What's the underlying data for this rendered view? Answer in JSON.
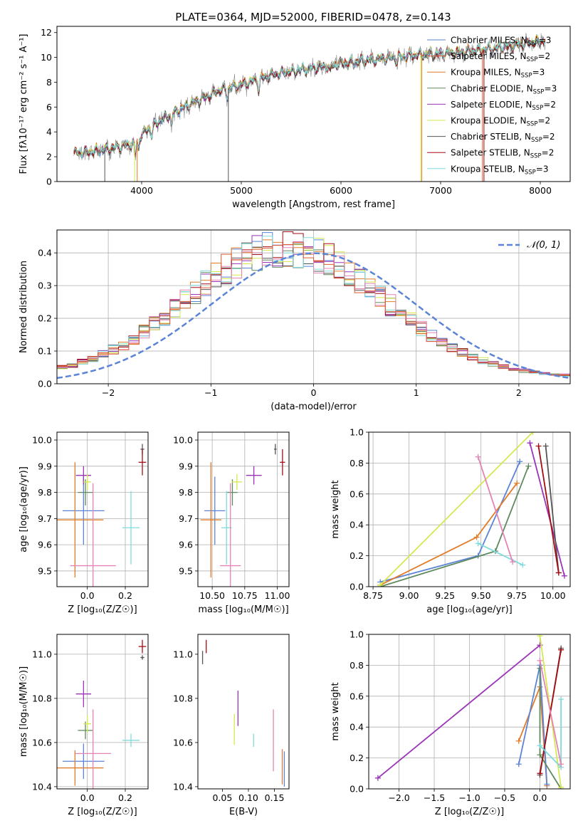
{
  "figure": {
    "title": "PLATE=0364, MJD=52000, FIBERID=0478, z=0.143"
  },
  "colors": {
    "c1": "#5b84d6",
    "c2": "#e07c2a",
    "c3": "#5e8a5e",
    "c4": "#9b35b8",
    "c5": "#d6e84f",
    "c6": "#555555",
    "c7": "#a30e14",
    "c8": "#7fdbdb",
    "c9": "#e483b4",
    "c10": "#e05a33"
  },
  "chart_data": [
    {
      "id": "spectrum",
      "type": "line",
      "xlabel": "wavelength [Angstrom, rest frame]",
      "ylabel": "Flux [fλ10⁻¹⁷ erg cm⁻² s⁻¹ A⁻¹]",
      "xlim": [
        3150,
        8300
      ],
      "ylim": [
        0,
        12.5
      ],
      "xticks": [
        4000,
        5000,
        6000,
        7000,
        8000
      ],
      "yticks": [
        0,
        2,
        4,
        6,
        8,
        10,
        12
      ],
      "grid": false,
      "legend": "top-right",
      "series": [
        {
          "name": "Chabrier MILES, N_SSP=3",
          "color": "c1"
        },
        {
          "name": "Salpeter MILES, N_SSP=2",
          "color": "c10"
        },
        {
          "name": "Kroupa MILES, N_SSP=3",
          "color": "c2"
        },
        {
          "name": "Chabrier ELODIE, N_SSP=3",
          "color": "c3"
        },
        {
          "name": "Salpeter ELODIE, N_SSP=2",
          "color": "c4"
        },
        {
          "name": "Kroupa ELODIE, N_SSP=2",
          "color": "c5"
        },
        {
          "name": "Chabrier STELIB, N_SSP=2",
          "color": "c6"
        },
        {
          "name": "Salpeter STELIB, N_SSP=2",
          "color": "c7"
        },
        {
          "name": "Kroupa STELIB, N_SSP=3",
          "color": "c8"
        }
      ],
      "continuum": {
        "x": [
          3300,
          3500,
          3700,
          3900,
          4000,
          4200,
          4500,
          4800,
          5000,
          5300,
          5600,
          6000,
          6400,
          6800,
          7200,
          7600,
          8000,
          8100
        ],
        "y": [
          2.3,
          2.4,
          2.7,
          3.0,
          3.8,
          5.0,
          6.3,
          7.4,
          7.8,
          8.6,
          9.0,
          9.5,
          9.9,
          10.2,
          10.4,
          10.8,
          11.3,
          11.5
        ]
      }
    },
    {
      "id": "residuals",
      "type": "bar",
      "xlabel": "(data-model)/error",
      "ylabel": "Normed distribution",
      "xlim": [
        -2.5,
        2.5
      ],
      "ylim": [
        0,
        0.47
      ],
      "xticks": [
        -2,
        -1,
        0,
        1,
        2
      ],
      "yticks": [
        0.0,
        0.1,
        0.2,
        0.3,
        0.4
      ],
      "grid": true,
      "legend": "top-right",
      "reference": {
        "name": "𝒩(0, 1)",
        "color": "#5b84d6",
        "mean": 0,
        "sigma": 1
      },
      "bin_width": 0.1
    },
    {
      "id": "age-vs-Z",
      "type": "scatter",
      "xlabel": "Z [log₁₀(Z/Z☉)]",
      "ylabel": "age  [log₁₀(age/yr)]",
      "xlim": [
        -0.16,
        0.32
      ],
      "ylim": [
        9.44,
        10.03
      ],
      "xticks": [
        0.0,
        0.2
      ],
      "yticks": [
        9.5,
        9.6,
        9.7,
        9.8,
        9.9,
        10.0
      ],
      "grid": true,
      "points": [
        {
          "x": -0.02,
          "y": 9.73,
          "xerr": 0.11,
          "yerr": 0.13,
          "color": "c1"
        },
        {
          "x": -0.065,
          "y": 9.695,
          "xerr": 0.15,
          "yerr": 0.22,
          "color": "c2"
        },
        {
          "x": -0.01,
          "y": 9.8,
          "xerr": 0.04,
          "yerr": 0.05,
          "color": "c3"
        },
        {
          "x": -0.02,
          "y": 9.865,
          "xerr": 0.04,
          "yerr": 0.035,
          "color": "c4"
        },
        {
          "x": 0.0,
          "y": 9.84,
          "xerr": 0.02,
          "yerr": 0.03,
          "color": "c5"
        },
        {
          "x": 0.29,
          "y": 9.965,
          "xerr": 0.01,
          "yerr": 0.02,
          "color": "c6"
        },
        {
          "x": 0.29,
          "y": 9.915,
          "xerr": 0.02,
          "yerr": 0.05,
          "color": "c7"
        },
        {
          "x": 0.23,
          "y": 9.665,
          "xerr": 0.045,
          "yerr": 0.14,
          "color": "c8"
        },
        {
          "x": 0.03,
          "y": 9.52,
          "xerr": 0.12,
          "yerr": 0.315,
          "color": "c9"
        }
      ]
    },
    {
      "id": "age-vs-mass",
      "type": "scatter",
      "xlabel": "mass [log₁₀(M/M☉)]",
      "ylabel": "",
      "xlim": [
        10.39,
        11.09
      ],
      "ylim": [
        9.44,
        10.03
      ],
      "xticks": [
        10.5,
        10.75,
        11.0
      ],
      "yticks": [
        9.5,
        9.6,
        9.7,
        9.8,
        9.9,
        10.0
      ],
      "grid": true,
      "points": [
        {
          "x": 10.52,
          "y": 9.73,
          "xerr": 0.08,
          "yerr": 0.13,
          "color": "c1"
        },
        {
          "x": 10.49,
          "y": 9.695,
          "xerr": 0.08,
          "yerr": 0.22,
          "color": "c2"
        },
        {
          "x": 10.655,
          "y": 9.8,
          "xerr": 0.04,
          "yerr": 0.05,
          "color": "c3"
        },
        {
          "x": 10.82,
          "y": 9.865,
          "xerr": 0.06,
          "yerr": 0.035,
          "color": "c4"
        },
        {
          "x": 10.69,
          "y": 9.84,
          "xerr": 0.04,
          "yerr": 0.03,
          "color": "c5"
        },
        {
          "x": 10.985,
          "y": 9.965,
          "xerr": 0.01,
          "yerr": 0.02,
          "color": "c6"
        },
        {
          "x": 11.04,
          "y": 9.915,
          "xerr": 0.02,
          "yerr": 0.05,
          "color": "c7"
        },
        {
          "x": 10.61,
          "y": 9.665,
          "xerr": 0.04,
          "yerr": 0.14,
          "color": "c8"
        },
        {
          "x": 10.64,
          "y": 9.52,
          "xerr": 0.08,
          "yerr": 0.315,
          "color": "c9"
        }
      ]
    },
    {
      "id": "weight-vs-age",
      "type": "line",
      "xlabel": "age  [log₁₀(age/yr)]",
      "ylabel": "mass weight",
      "xlim": [
        8.72,
        10.12
      ],
      "ylim": [
        0,
        1.0
      ],
      "xticks": [
        8.75,
        9.0,
        9.25,
        9.5,
        9.75,
        10.0
      ],
      "yticks": [
        0.0,
        0.2,
        0.4,
        0.6,
        0.8,
        1.0
      ],
      "grid": true,
      "series": [
        {
          "color": "c1",
          "x": [
            8.8,
            9.48,
            9.77
          ],
          "y": [
            0.03,
            0.2,
            0.81
          ]
        },
        {
          "color": "c2",
          "x": [
            8.8,
            9.47,
            9.75
          ],
          "y": [
            0.01,
            0.32,
            0.67
          ]
        },
        {
          "color": "c3",
          "x": [
            8.8,
            9.6,
            9.83
          ],
          "y": [
            0.0,
            0.23,
            0.78
          ]
        },
        {
          "color": "c5",
          "x": [
            8.8,
            9.86
          ],
          "y": [
            0.01,
            1.0
          ]
        },
        {
          "color": "c4",
          "x": [
            9.84,
            10.08
          ],
          "y": [
            0.93,
            0.07
          ]
        },
        {
          "color": "c6",
          "x": [
            9.95,
            10.04
          ],
          "y": [
            0.91,
            0.09
          ]
        },
        {
          "color": "c7",
          "x": [
            9.9,
            10.04
          ],
          "y": [
            0.91,
            0.09
          ]
        },
        {
          "color": "c8",
          "x": [
            9.48,
            9.79
          ],
          "y": [
            0.28,
            0.14
          ]
        },
        {
          "color": "c9",
          "x": [
            9.48,
            9.72
          ],
          "y": [
            0.84,
            0.16
          ]
        }
      ]
    },
    {
      "id": "mass-vs-Z",
      "type": "scatter",
      "xlabel": "Z [log₁₀(Z/Z☉)]",
      "ylabel": "mass [log₁₀(M/M☉)]",
      "xlim": [
        -0.16,
        0.32
      ],
      "ylim": [
        10.39,
        11.09
      ],
      "xticks": [
        0.0,
        0.2
      ],
      "yticks": [
        10.4,
        10.6,
        10.8,
        11.0
      ],
      "grid": true,
      "points": [
        {
          "x": -0.02,
          "y": 10.515,
          "xerr": 0.11,
          "yerr": 0.08,
          "color": "c1"
        },
        {
          "x": -0.065,
          "y": 10.485,
          "xerr": 0.15,
          "yerr": 0.08,
          "color": "c2"
        },
        {
          "x": -0.01,
          "y": 10.655,
          "xerr": 0.04,
          "yerr": 0.04,
          "color": "c3"
        },
        {
          "x": -0.02,
          "y": 10.82,
          "xerr": 0.04,
          "yerr": 0.06,
          "color": "c4"
        },
        {
          "x": 0.0,
          "y": 10.685,
          "xerr": 0.02,
          "yerr": 0.04,
          "color": "c5"
        },
        {
          "x": 0.29,
          "y": 10.985,
          "xerr": 0.01,
          "yerr": 0.01,
          "color": "c6"
        },
        {
          "x": 0.29,
          "y": 11.035,
          "xerr": 0.02,
          "yerr": 0.03,
          "color": "c7"
        },
        {
          "x": 0.23,
          "y": 10.61,
          "xerr": 0.045,
          "yerr": 0.03,
          "color": "c8"
        },
        {
          "x": 0.03,
          "y": 10.55,
          "xerr": 0.095,
          "yerr": 0.2,
          "color": "c9"
        }
      ]
    },
    {
      "id": "mass-vs-ebv",
      "type": "scatter",
      "xlabel": "E(B-V)",
      "ylabel": "",
      "xlim": [
        0.003,
        0.178
      ],
      "ylim": [
        10.39,
        11.09
      ],
      "xticks": [
        0.05,
        0.1,
        0.15
      ],
      "yticks": [
        10.4,
        10.6,
        10.8,
        11.0
      ],
      "grid": false,
      "points": [
        {
          "x": 0.012,
          "y": 10.985,
          "yerr": 0.03,
          "color": "c6"
        },
        {
          "x": 0.019,
          "y": 11.035,
          "yerr": 0.03,
          "color": "c7"
        },
        {
          "x": 0.073,
          "y": 10.66,
          "yerr": 0.07,
          "color": "c5"
        },
        {
          "x": 0.08,
          "y": 10.755,
          "yerr": 0.08,
          "color": "c4"
        },
        {
          "x": 0.11,
          "y": 10.61,
          "yerr": 0.03,
          "color": "c8"
        },
        {
          "x": 0.148,
          "y": 10.61,
          "yerr": 0.14,
          "color": "c9"
        },
        {
          "x": 0.165,
          "y": 10.49,
          "yerr": 0.08,
          "color": "c2"
        },
        {
          "x": 0.169,
          "y": 10.48,
          "yerr": 0.08,
          "color": "c1"
        }
      ]
    },
    {
      "id": "weight-vs-Z",
      "type": "line",
      "xlabel": "Z [log₁₀(Z/Z☉)]",
      "ylabel": "mass weight",
      "xlim": [
        -2.43,
        0.43
      ],
      "ylim": [
        0,
        1.0
      ],
      "xticks": [
        -2.0,
        -1.5,
        -1.0,
        -0.5,
        0.0
      ],
      "yticks": [
        0.0,
        0.2,
        0.4,
        0.6,
        0.8,
        1.0
      ],
      "grid": true,
      "series": [
        {
          "color": "c4",
          "x": [
            -2.3,
            0.0
          ],
          "y": [
            0.07,
            0.93
          ]
        },
        {
          "color": "c2",
          "x": [
            -0.3,
            0.0,
            0.1
          ],
          "y": [
            0.31,
            0.66,
            0.02
          ]
        },
        {
          "color": "c1",
          "x": [
            -0.3,
            0.0,
            0.1
          ],
          "y": [
            0.16,
            0.8,
            0.03
          ]
        },
        {
          "color": "c3",
          "x": [
            0.0,
            0.0,
            0.3
          ],
          "y": [
            0.78,
            0.22,
            0.0
          ]
        },
        {
          "color": "c5",
          "x": [
            0.0,
            0.3
          ],
          "y": [
            0.99,
            0.01
          ]
        },
        {
          "color": "c6",
          "x": [
            0.0,
            0.3
          ],
          "y": [
            0.09,
            0.91
          ]
        },
        {
          "color": "c7",
          "x": [
            0.0,
            0.3
          ],
          "y": [
            0.1,
            0.9
          ]
        },
        {
          "color": "c8",
          "x": [
            0.3,
            0.3,
            0.0
          ],
          "y": [
            0.58,
            0.14,
            0.28
          ]
        },
        {
          "color": "c9",
          "x": [
            0.0,
            0.3
          ],
          "y": [
            0.83,
            0.16
          ]
        }
      ]
    }
  ]
}
